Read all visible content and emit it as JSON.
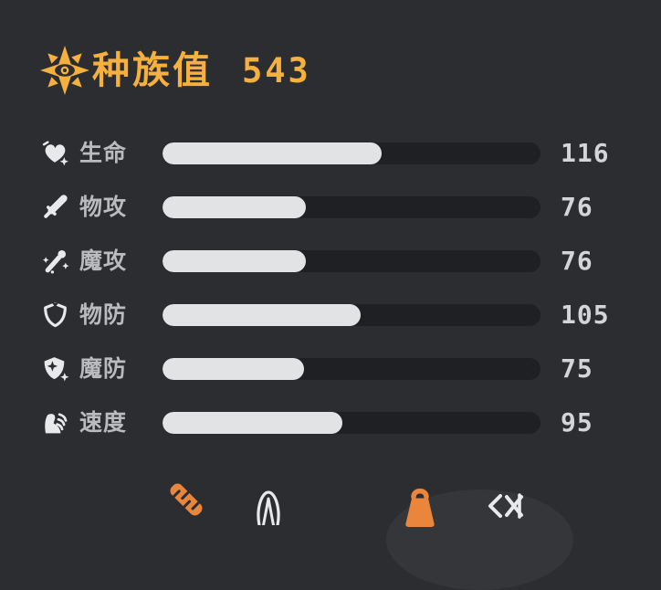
{
  "title": {
    "icon": "star-eye-icon",
    "label": "种族值",
    "total": "543"
  },
  "stats": {
    "max": 200,
    "rows": [
      {
        "icon": "heart-icon",
        "label": "生命",
        "value": 116
      },
      {
        "icon": "sword-icon",
        "label": "物攻",
        "value": 76
      },
      {
        "icon": "magic-wand-icon",
        "label": "魔攻",
        "value": 76
      },
      {
        "icon": "shield-icon",
        "label": "物防",
        "value": 105
      },
      {
        "icon": "magic-shield-icon",
        "label": "魔防",
        "value": 75
      },
      {
        "icon": "speed-boot-icon",
        "label": "速度",
        "value": 95
      }
    ]
  },
  "footer": {
    "icons": [
      "ruler-icon",
      "arch-outline-icon",
      "weight-icon",
      "fish-skeleton-icon"
    ]
  },
  "colors": {
    "background": "#2b2d31",
    "accent_orange": "#f6b03d",
    "deep_orange": "#e9863b",
    "bar_track": "#1e2023",
    "bar_fill": "#e2e3e4",
    "label_gray": "#b9bbbe",
    "value_gray": "#d3d5d7",
    "icon_white": "#e8e9ea",
    "footer_highlight": "#34363a"
  }
}
